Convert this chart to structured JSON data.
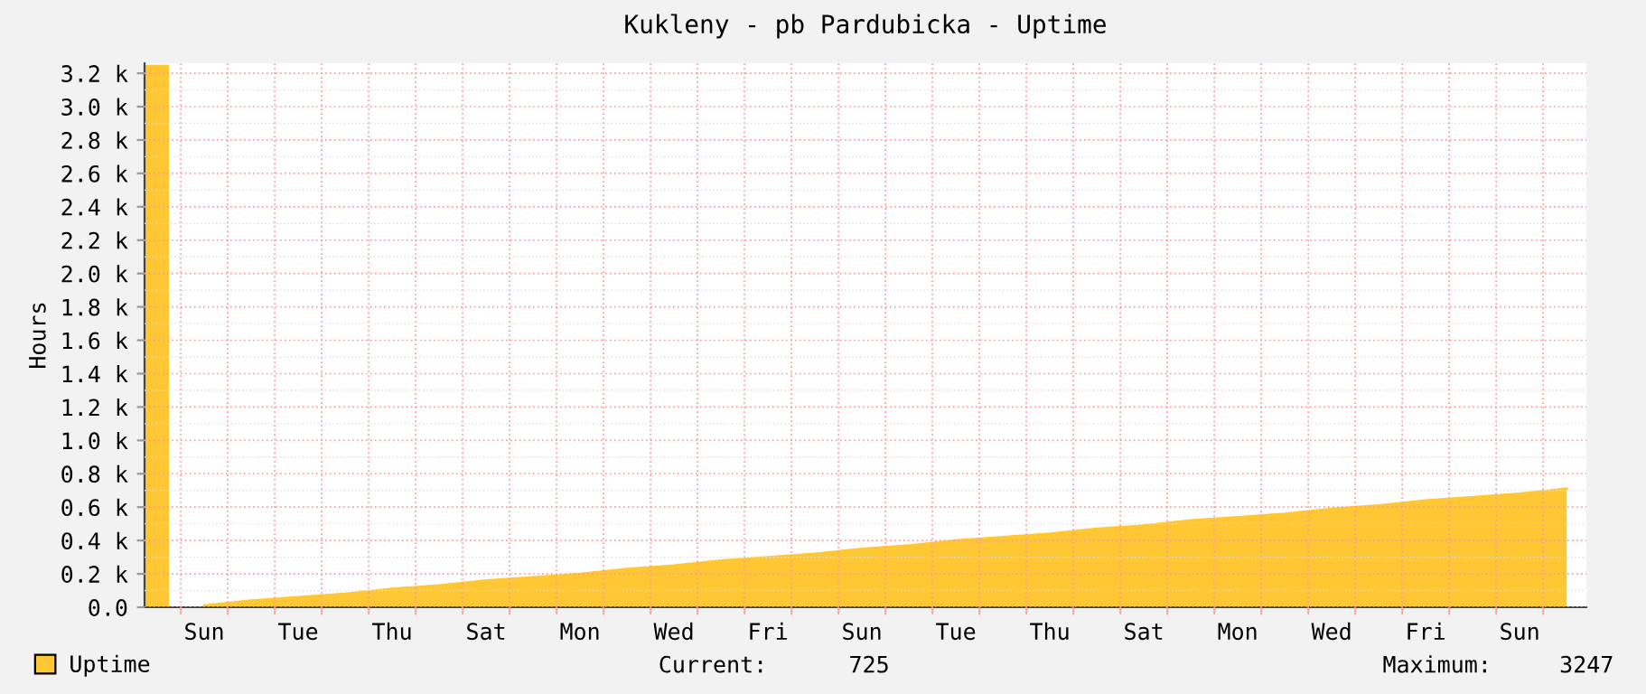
{
  "chart_data": {
    "type": "area",
    "title": "Kukleny - pb Pardubicka - Uptime",
    "ylabel": "Hours",
    "categories": [
      null,
      "Sun",
      null,
      "Tue",
      null,
      "Thu",
      null,
      "Sat",
      null,
      "Mon",
      null,
      "Wed",
      null,
      "Fri",
      null,
      "Sun",
      null,
      "Tue",
      null,
      "Thu",
      null,
      "Sat",
      null,
      "Mon",
      null,
      "Wed",
      null,
      "Fri",
      null,
      "Sun",
      null
    ],
    "series": [
      {
        "type": "bar",
        "color": "#ffc733",
        "values": [
          3250,
          null,
          null,
          null,
          null,
          null,
          null,
          null,
          null,
          null,
          null,
          null,
          null,
          null,
          null,
          null,
          null,
          null,
          null,
          null,
          null,
          null,
          null,
          null,
          null,
          null,
          null,
          null,
          null,
          null,
          null
        ]
      },
      {
        "name": "Uptime",
        "color": "#ffc733",
        "values": [
          null,
          10,
          40,
          60,
          80,
          110,
          130,
          160,
          180,
          200,
          230,
          250,
          280,
          300,
          320,
          350,
          370,
          400,
          420,
          440,
          470,
          490,
          520,
          540,
          560,
          590,
          610,
          640,
          660,
          680,
          710
        ]
      }
    ],
    "ylim": [
      0,
      3260
    ],
    "yticks": [
      {
        "value": 0,
        "label": "0.0"
      },
      {
        "value": 200,
        "label": "0.2 k"
      },
      {
        "value": 400,
        "label": "0.4 k"
      },
      {
        "value": 600,
        "label": "0.6 k"
      },
      {
        "value": 800,
        "label": "0.8 k"
      },
      {
        "value": 1000,
        "label": "1.0 k"
      },
      {
        "value": 1200,
        "label": "1.2 k"
      },
      {
        "value": 1400,
        "label": "1.4 k"
      },
      {
        "value": 1600,
        "label": "1.6 k"
      },
      {
        "value": 1800,
        "label": "1.8 k"
      },
      {
        "value": 2000,
        "label": "2.0 k"
      },
      {
        "value": 2200,
        "label": "2.2 k"
      },
      {
        "value": 2400,
        "label": "2.4 k"
      },
      {
        "value": 2600,
        "label": "2.6 k"
      },
      {
        "value": 2800,
        "label": "2.8 k"
      },
      {
        "value": 3000,
        "label": "3.0 k"
      },
      {
        "value": 3200,
        "label": "3.2 k"
      }
    ],
    "grid": true,
    "legend": "bottom left",
    "annotations": [
      "Current:      725",
      "Maximum:     3247"
    ]
  }
}
